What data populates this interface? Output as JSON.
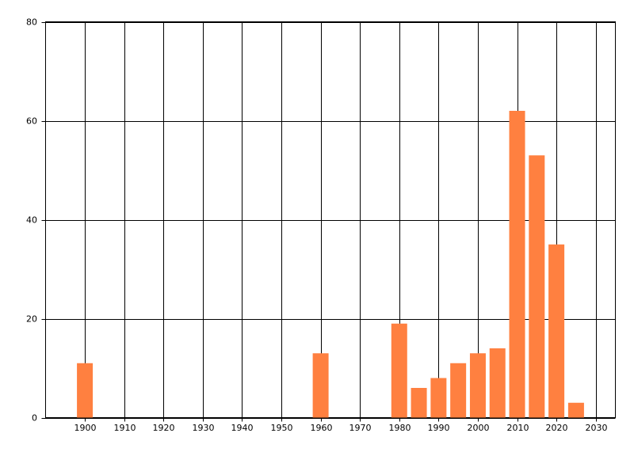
{
  "chart_data": {
    "type": "bar",
    "x": [
      1900,
      1960,
      1980,
      1985,
      1990,
      1995,
      2000,
      2005,
      2010,
      2015,
      2020,
      2025
    ],
    "values": [
      11,
      13,
      19,
      6,
      8,
      11,
      13,
      14,
      62,
      53,
      35,
      3
    ],
    "color": "#ff8040",
    "xlim": [
      1890,
      2035
    ],
    "xticks": [
      1900,
      1910,
      1920,
      1930,
      1940,
      1950,
      1960,
      1970,
      1980,
      1990,
      2000,
      2010,
      2020,
      2030
    ],
    "ylim": [
      0,
      80
    ],
    "yticks": [
      0,
      20,
      40,
      60,
      80
    ],
    "grid": true
  }
}
